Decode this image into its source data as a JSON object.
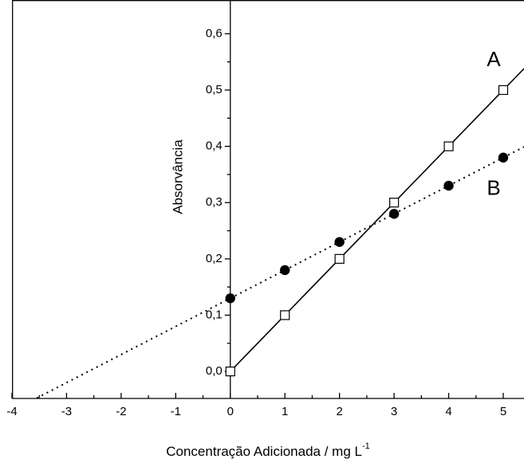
{
  "chart_data": {
    "type": "scatter",
    "x_label": "Concentração Adicionada / mg L",
    "x_label_sup": "-1",
    "y_label": "Absorvância",
    "x": [
      0,
      1,
      2,
      3,
      4,
      5
    ],
    "series": [
      {
        "name": "A",
        "color": "#000000",
        "marker": "square",
        "line_style": "solid",
        "fit_extrapolate": false,
        "values": [
          0.0,
          0.1,
          0.2,
          0.3,
          0.4,
          0.5
        ]
      },
      {
        "name": "B",
        "color": "#000000",
        "marker": "circle",
        "line_style": "dotted",
        "fit_extrapolate": true,
        "values": [
          0.13,
          0.18,
          0.23,
          0.28,
          0.33,
          0.38
        ]
      }
    ],
    "xlim": [
      -4,
      5.38
    ],
    "xticks": [
      -4,
      -3,
      -2,
      -1,
      0,
      1,
      2,
      3,
      4,
      5
    ],
    "ylim": [
      -0.048,
      0.66
    ],
    "yticks": [
      {
        "value": 0.0,
        "label": "0,0"
      },
      {
        "value": 0.1,
        "label": "0,1"
      },
      {
        "value": 0.2,
        "label": "0,2"
      },
      {
        "value": 0.3,
        "label": "0,3"
      },
      {
        "value": 0.4,
        "label": "0,4"
      },
      {
        "value": 0.5,
        "label": "0,5"
      },
      {
        "value": 0.6,
        "label": "0,6"
      }
    ],
    "grid": false
  }
}
